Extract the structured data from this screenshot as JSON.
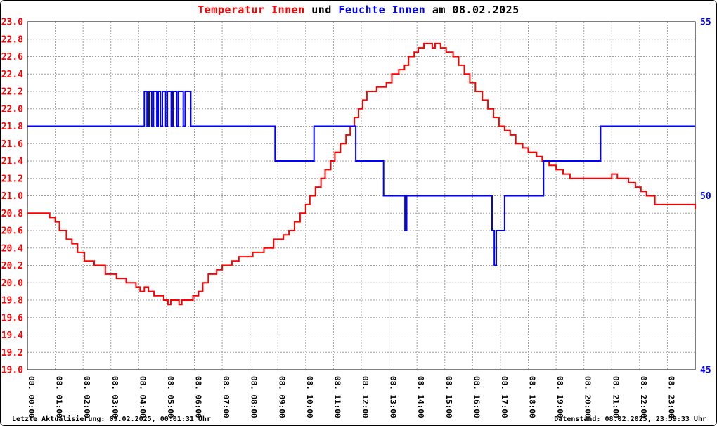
{
  "title": {
    "part1": "Temperatur Innen",
    "part2": " und ",
    "part3": "Feuchte Innen",
    "part4": " am 08.02.2025"
  },
  "footer": {
    "left": "Letzte Aktualisierung: 09.02.2025, 00:01:31 Uhr",
    "right": "Datenstand: 08.02.2025, 23:59:33 Uhr"
  },
  "colors": {
    "temperature": "#ff0000",
    "humidity": "#0000ff",
    "grid": "#a0a0a0",
    "axis": "#000000",
    "background": "#ffffff"
  },
  "chart_data": {
    "type": "line",
    "title": "Temperatur Innen und Feuchte Innen am 08.02.2025",
    "grid": true,
    "legend": "none",
    "x_unit": "hour",
    "x_range": [
      0,
      24
    ],
    "x_tick_labels": [
      "08. 00:00",
      "08. 01:00",
      "08. 02:00",
      "08. 03:00",
      "08. 04:00",
      "08. 05:00",
      "08. 06:00",
      "08. 07:00",
      "08. 08:00",
      "08. 09:00",
      "08. 10:00",
      "08. 11:00",
      "08. 12:00",
      "08. 13:00",
      "08. 14:00",
      "08. 15:00",
      "08. 16:00",
      "08. 17:00",
      "08. 18:00",
      "08. 19:00",
      "08. 20:00",
      "08. 21:00",
      "08. 22:00",
      "08. 23:00"
    ],
    "left_axis": {
      "name": "Temperatur Innen",
      "range": [
        19.0,
        23.0
      ],
      "tick_step": 0.2,
      "color": "#ff0000"
    },
    "right_axis": {
      "name": "Feuchte Innen",
      "range": [
        45,
        55
      ],
      "ticks": [
        55,
        50,
        45
      ],
      "color": "#0000ff"
    },
    "series": [
      {
        "name": "Temperatur Innen",
        "axis": "left",
        "color": "#ff0000",
        "style": "step",
        "points": [
          [
            0,
            20.8
          ],
          [
            0.8,
            20.75
          ],
          [
            1.0,
            20.7
          ],
          [
            1.15,
            20.6
          ],
          [
            1.4,
            20.5
          ],
          [
            1.6,
            20.45
          ],
          [
            1.8,
            20.35
          ],
          [
            2.05,
            20.25
          ],
          [
            2.4,
            20.2
          ],
          [
            2.8,
            20.1
          ],
          [
            3.2,
            20.05
          ],
          [
            3.55,
            20.0
          ],
          [
            3.9,
            19.95
          ],
          [
            4.05,
            19.9
          ],
          [
            4.2,
            19.95
          ],
          [
            4.35,
            19.9
          ],
          [
            4.55,
            19.85
          ],
          [
            4.9,
            19.8
          ],
          [
            5.05,
            19.75
          ],
          [
            5.15,
            19.8
          ],
          [
            5.45,
            19.75
          ],
          [
            5.55,
            19.8
          ],
          [
            5.95,
            19.85
          ],
          [
            6.15,
            19.9
          ],
          [
            6.3,
            20.0
          ],
          [
            6.5,
            20.1
          ],
          [
            6.8,
            20.15
          ],
          [
            7.0,
            20.2
          ],
          [
            7.35,
            20.25
          ],
          [
            7.6,
            20.3
          ],
          [
            8.1,
            20.35
          ],
          [
            8.5,
            20.4
          ],
          [
            8.85,
            20.5
          ],
          [
            9.2,
            20.55
          ],
          [
            9.4,
            20.6
          ],
          [
            9.6,
            20.7
          ],
          [
            9.8,
            20.8
          ],
          [
            10.0,
            20.9
          ],
          [
            10.15,
            21.0
          ],
          [
            10.35,
            21.1
          ],
          [
            10.55,
            21.2
          ],
          [
            10.7,
            21.3
          ],
          [
            10.9,
            21.4
          ],
          [
            11.05,
            21.5
          ],
          [
            11.25,
            21.6
          ],
          [
            11.45,
            21.7
          ],
          [
            11.6,
            21.8
          ],
          [
            11.75,
            21.9
          ],
          [
            11.9,
            22.0
          ],
          [
            12.05,
            22.1
          ],
          [
            12.2,
            22.2
          ],
          [
            12.55,
            22.25
          ],
          [
            12.9,
            22.3
          ],
          [
            13.1,
            22.4
          ],
          [
            13.35,
            22.45
          ],
          [
            13.55,
            22.5
          ],
          [
            13.7,
            22.6
          ],
          [
            13.9,
            22.65
          ],
          [
            14.05,
            22.7
          ],
          [
            14.25,
            22.75
          ],
          [
            14.55,
            22.7
          ],
          [
            14.65,
            22.75
          ],
          [
            14.85,
            22.7
          ],
          [
            15.05,
            22.65
          ],
          [
            15.3,
            22.6
          ],
          [
            15.5,
            22.5
          ],
          [
            15.7,
            22.4
          ],
          [
            15.9,
            22.3
          ],
          [
            16.1,
            22.2
          ],
          [
            16.35,
            22.1
          ],
          [
            16.55,
            22.0
          ],
          [
            16.75,
            21.9
          ],
          [
            16.95,
            21.8
          ],
          [
            17.15,
            21.75
          ],
          [
            17.35,
            21.7
          ],
          [
            17.55,
            21.6
          ],
          [
            17.8,
            21.55
          ],
          [
            18.0,
            21.5
          ],
          [
            18.3,
            21.45
          ],
          [
            18.5,
            21.4
          ],
          [
            18.75,
            21.35
          ],
          [
            19.0,
            21.3
          ],
          [
            19.25,
            21.25
          ],
          [
            19.5,
            21.2
          ],
          [
            20.8,
            21.2
          ],
          [
            21.0,
            21.25
          ],
          [
            21.2,
            21.2
          ],
          [
            21.6,
            21.15
          ],
          [
            21.85,
            21.1
          ],
          [
            22.05,
            21.05
          ],
          [
            22.25,
            21.0
          ],
          [
            22.55,
            20.9
          ],
          [
            23.9,
            20.9
          ],
          [
            24,
            20.85
          ]
        ]
      },
      {
        "name": "Feuchte Innen",
        "axis": "right",
        "color": "#0000ff",
        "style": "step",
        "points": [
          [
            0,
            52
          ],
          [
            4.2,
            53
          ],
          [
            4.3,
            52
          ],
          [
            4.37,
            53
          ],
          [
            4.47,
            52
          ],
          [
            4.53,
            53
          ],
          [
            4.65,
            52
          ],
          [
            4.7,
            53
          ],
          [
            4.78,
            52
          ],
          [
            4.85,
            53
          ],
          [
            4.97,
            52
          ],
          [
            5.03,
            53
          ],
          [
            5.17,
            52
          ],
          [
            5.23,
            53
          ],
          [
            5.37,
            52
          ],
          [
            5.43,
            53
          ],
          [
            5.6,
            52
          ],
          [
            5.67,
            53
          ],
          [
            5.87,
            52
          ],
          [
            8.9,
            51
          ],
          [
            10.3,
            52
          ],
          [
            11.8,
            51
          ],
          [
            12.8,
            50
          ],
          [
            13.57,
            49
          ],
          [
            13.63,
            50
          ],
          [
            16.7,
            49
          ],
          [
            16.78,
            48
          ],
          [
            16.85,
            49
          ],
          [
            17.15,
            50
          ],
          [
            18.55,
            51
          ],
          [
            20.6,
            52
          ],
          [
            24,
            52
          ]
        ]
      }
    ]
  }
}
